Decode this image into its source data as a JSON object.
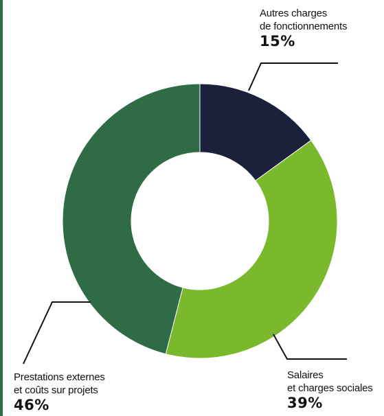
{
  "chart_data": {
    "type": "pie",
    "donut": true,
    "title": "",
    "slices": [
      {
        "label_lines": [
          "Autres charges",
          "de fonctionnements"
        ],
        "value": 15,
        "display": "15%",
        "color": "#1b213b"
      },
      {
        "label_lines": [
          "Salaires",
          "et charges sociales"
        ],
        "value": 39,
        "display": "39%",
        "color": "#7ab82c"
      },
      {
        "label_lines": [
          "Prestations externes",
          "et coûts sur projets"
        ],
        "value": 46,
        "display": "46%",
        "color": "#2f6b45"
      }
    ],
    "start": "top",
    "direction": "clockwise",
    "legend": "none"
  },
  "colors": {
    "accent_rule": "#2f6b45",
    "leader_lines": "#111111",
    "text": "#111111"
  }
}
